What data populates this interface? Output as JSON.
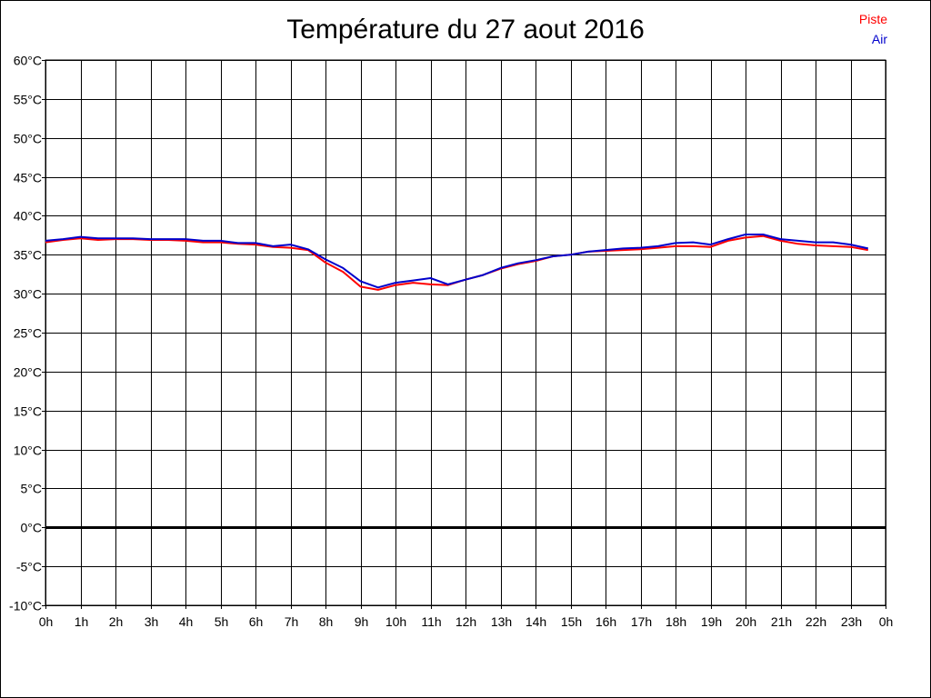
{
  "chart_data": {
    "type": "line",
    "title": "Température du 27 aout 2016",
    "x_tick_labels": [
      "0h",
      "1h",
      "2h",
      "3h",
      "4h",
      "5h",
      "6h",
      "7h",
      "8h",
      "9h",
      "10h",
      "11h",
      "12h",
      "13h",
      "14h",
      "15h",
      "16h",
      "17h",
      "18h",
      "19h",
      "20h",
      "21h",
      "22h",
      "23h",
      "0h"
    ],
    "y_tick_labels": [
      "60°C",
      "55°C",
      "50°C",
      "45°C",
      "40°C",
      "35°C",
      "30°C",
      "25°C",
      "20°C",
      "15°C",
      "10°C",
      "5°C",
      "0°C",
      "-5°C",
      "-10°C"
    ],
    "xlim": [
      0,
      24
    ],
    "ylim": [
      -10,
      60
    ],
    "grid": true,
    "legend_position": "top-right",
    "series": [
      {
        "name": "Piste",
        "color": "#ff0000",
        "x": [
          0,
          0.5,
          1,
          1.5,
          2,
          2.5,
          3,
          3.5,
          4,
          4.5,
          5,
          5.5,
          6,
          6.5,
          7,
          7.5,
          8,
          8.5,
          9,
          9.5,
          10,
          10.5,
          11,
          11.5,
          12,
          12.5,
          13,
          13.5,
          14,
          14.5,
          15,
          15.5,
          16,
          16.5,
          17,
          17.5,
          18,
          18.5,
          19,
          19.5,
          20,
          20.5,
          21,
          21.5,
          22,
          22.5,
          23,
          23.5
        ],
        "values": [
          36.6,
          36.9,
          37.1,
          36.9,
          37.0,
          37.0,
          36.9,
          36.9,
          36.8,
          36.6,
          36.6,
          36.4,
          36.3,
          36.0,
          35.9,
          35.6,
          34.0,
          32.8,
          30.9,
          30.5,
          31.1,
          31.4,
          31.2,
          31.1,
          31.8,
          32.4,
          33.2,
          33.8,
          34.2,
          34.8,
          35.0,
          35.4,
          35.5,
          35.6,
          35.7,
          35.9,
          36.1,
          36.1,
          36.0,
          36.8,
          37.2,
          37.4,
          36.8,
          36.4,
          36.2,
          36.1,
          36.0,
          35.6
        ]
      },
      {
        "name": "Air",
        "color": "#0000cc",
        "x": [
          0,
          0.5,
          1,
          1.5,
          2,
          2.5,
          3,
          3.5,
          4,
          4.5,
          5,
          5.5,
          6,
          6.5,
          7,
          7.5,
          8,
          8.5,
          9,
          9.5,
          10,
          10.5,
          11,
          11.5,
          12,
          12.5,
          13,
          13.5,
          14,
          14.5,
          15,
          15.5,
          16,
          16.5,
          17,
          17.5,
          18,
          18.5,
          19,
          19.5,
          20,
          20.5,
          21,
          21.5,
          22,
          22.5,
          23,
          23.5
        ],
        "values": [
          36.8,
          37.0,
          37.3,
          37.1,
          37.1,
          37.1,
          37.0,
          37.0,
          37.0,
          36.8,
          36.8,
          36.5,
          36.5,
          36.1,
          36.3,
          35.7,
          34.4,
          33.3,
          31.6,
          30.8,
          31.4,
          31.7,
          32.0,
          31.2,
          31.8,
          32.4,
          33.3,
          33.9,
          34.3,
          34.8,
          35.0,
          35.4,
          35.6,
          35.8,
          35.9,
          36.1,
          36.5,
          36.6,
          36.3,
          37.0,
          37.6,
          37.6,
          37.0,
          36.8,
          36.6,
          36.6,
          36.3,
          35.8
        ]
      }
    ]
  }
}
